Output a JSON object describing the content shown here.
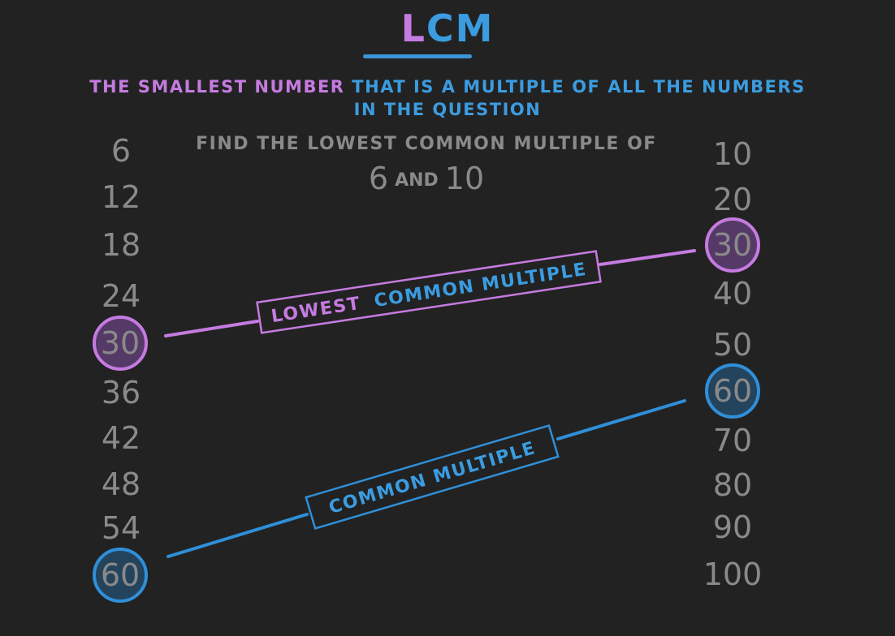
{
  "title": {
    "first_letter": "L",
    "rest": "CM"
  },
  "definition": {
    "part1": "THE SMALLEST NUMBER",
    "part2": "THAT IS A MULTIPLE OF ALL THE NUMBERS",
    "line2": "IN THE QUESTION"
  },
  "question": {
    "line1": "FIND THE LOWEST COMMON MULTIPLE OF",
    "a": "6",
    "and": "AND",
    "b": "10"
  },
  "multiples_of_6": [
    "6",
    "12",
    "18",
    "24",
    "30",
    "36",
    "42",
    "48",
    "54",
    "60"
  ],
  "multiples_of_10": [
    "10",
    "20",
    "30",
    "40",
    "50",
    "60",
    "70",
    "80",
    "90",
    "100"
  ],
  "highlights": {
    "lcm_value": "30",
    "common_value": "60"
  },
  "labels": {
    "lowest_word": "LOWEST",
    "lcm_rest": "COMMON MULTIPLE",
    "common_multiple": "COMMON MULTIPLE"
  },
  "colors": {
    "background": "#222222",
    "purple": "#c57be0",
    "blue": "#3b9ce0",
    "grey_text": "#8a8a8a"
  }
}
